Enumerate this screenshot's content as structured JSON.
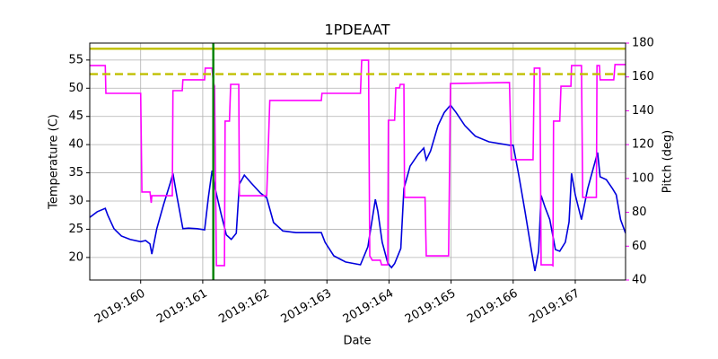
{
  "chart_data": {
    "type": "line",
    "title": "1PDEAAT",
    "x_label": "Date",
    "y_label": "Temperature (C)",
    "y2_label": "Pitch (deg)",
    "xlim": [
      159.18,
      167.81
    ],
    "xticks": [
      {
        "value": 160,
        "label": "2019:160"
      },
      {
        "value": 161,
        "label": "2019:161"
      },
      {
        "value": 162,
        "label": "2019:162"
      },
      {
        "value": 163,
        "label": "2019:163"
      },
      {
        "value": 164,
        "label": "2019:164"
      },
      {
        "value": 165,
        "label": "2019:165"
      },
      {
        "value": 166,
        "label": "2019:166"
      },
      {
        "value": 167,
        "label": "2019:167"
      }
    ],
    "ylim": [
      16,
      58
    ],
    "yticks": [
      20,
      25,
      30,
      35,
      40,
      45,
      50,
      55
    ],
    "y2lim": [
      40,
      180
    ],
    "y2ticks": [
      40,
      60,
      80,
      100,
      120,
      140,
      160,
      180
    ],
    "y2_color": "#ff00ff",
    "grid": true,
    "series": [
      {
        "color": "#0000dd",
        "axis": "y",
        "x": [
          159.18,
          159.3,
          159.43,
          159.47,
          159.57,
          159.69,
          159.83,
          160.0,
          160.08,
          160.15,
          160.18,
          160.26,
          160.37,
          160.48,
          160.52,
          160.58,
          160.68,
          160.77,
          160.91,
          161.03,
          161.09,
          161.15,
          161.2,
          161.3,
          161.38,
          161.46,
          161.54,
          161.59,
          161.67,
          161.78,
          161.93,
          162.03,
          162.14,
          162.29,
          162.5,
          162.91,
          162.97,
          163.11,
          163.3,
          163.54,
          163.57,
          163.66,
          163.78,
          163.82,
          163.89,
          163.98,
          164.04,
          164.09,
          164.19,
          164.24,
          164.34,
          164.47,
          164.56,
          164.6,
          164.67,
          164.79,
          164.89,
          164.99,
          165.08,
          165.22,
          165.39,
          165.61,
          165.94,
          166.0,
          166.09,
          166.19,
          166.3,
          166.35,
          166.41,
          166.45,
          166.51,
          166.59,
          166.68,
          166.75,
          166.84,
          166.9,
          166.94,
          167.0,
          167.1,
          167.2,
          167.32,
          167.36,
          167.4,
          167.5,
          167.6,
          167.66,
          167.73,
          167.81
        ],
        "values": [
          27.1,
          28.1,
          28.7,
          27.5,
          25.1,
          23.8,
          23.2,
          22.8,
          23.0,
          22.4,
          20.6,
          25.1,
          29.4,
          33.3,
          34.9,
          31.1,
          25.1,
          25.2,
          25.1,
          24.9,
          30.6,
          35.4,
          32.2,
          27.5,
          24.0,
          23.2,
          24.3,
          33.0,
          34.6,
          33.2,
          31.4,
          30.6,
          26.2,
          24.7,
          24.4,
          24.4,
          22.7,
          20.3,
          19.2,
          18.7,
          19.5,
          21.9,
          30.3,
          28.2,
          22.7,
          19.0,
          18.2,
          18.9,
          21.6,
          32.2,
          36.2,
          38.3,
          39.4,
          37.3,
          38.9,
          43.4,
          45.7,
          47.0,
          45.7,
          43.4,
          41.5,
          40.5,
          39.9,
          39.9,
          34.6,
          28.2,
          20.8,
          17.6,
          21.1,
          31.0,
          29.0,
          26.7,
          21.4,
          21.1,
          22.7,
          26.3,
          34.9,
          31.1,
          26.7,
          32.2,
          37.0,
          38.6,
          34.3,
          33.8,
          32.2,
          31.1,
          26.7,
          24.3
        ]
      },
      {
        "color": "#ff00ff",
        "axis": "y2",
        "x": [
          159.18,
          159.43,
          159.44,
          160.0,
          160.02,
          160.15,
          160.17,
          160.18,
          160.51,
          160.52,
          160.67,
          160.68,
          161.03,
          161.04,
          161.15,
          161.17,
          161.19,
          161.22,
          161.35,
          161.36,
          161.43,
          161.45,
          161.58,
          161.59,
          162.03,
          162.08,
          162.91,
          162.92,
          163.54,
          163.56,
          163.67,
          163.69,
          163.73,
          163.86,
          163.88,
          163.98,
          163.99,
          164.09,
          164.11,
          164.17,
          164.18,
          164.24,
          164.25,
          164.58,
          164.6,
          164.96,
          164.99,
          165.94,
          165.97,
          166.32,
          166.34,
          166.43,
          166.45,
          166.62,
          166.64,
          166.65,
          166.75,
          166.77,
          166.93,
          166.94,
          167.1,
          167.12,
          167.34,
          167.35,
          167.39,
          167.4,
          167.62,
          167.64,
          167.81
        ],
        "values": [
          166.7,
          166.7,
          150.3,
          150.3,
          92.0,
          92.0,
          85.6,
          89.8,
          89.8,
          151.9,
          151.9,
          158.3,
          158.3,
          165.2,
          165.2,
          156.7,
          154.5,
          48.5,
          48.5,
          133.9,
          133.9,
          155.6,
          155.6,
          89.8,
          89.8,
          146.1,
          146.1,
          150.3,
          150.3,
          169.9,
          169.9,
          54.3,
          51.7,
          51.7,
          49.0,
          49.0,
          134.4,
          134.4,
          153.5,
          153.5,
          155.6,
          155.6,
          88.8,
          88.8,
          54.3,
          54.3,
          156.1,
          156.7,
          111.1,
          111.1,
          165.2,
          165.2,
          49.0,
          49.0,
          48.5,
          133.9,
          133.9,
          154.5,
          154.5,
          166.7,
          166.7,
          88.8,
          88.8,
          166.7,
          166.7,
          158.3,
          158.3,
          167.3,
          167.3
        ]
      }
    ],
    "hlines": [
      {
        "value": 57.0,
        "color": "#bfbf00",
        "style": "solid"
      },
      {
        "value": 52.5,
        "color": "#bfbf00",
        "style": "dashed"
      }
    ],
    "vlines": [
      {
        "value": 161.17,
        "color": "#008000",
        "style": "solid"
      }
    ]
  }
}
